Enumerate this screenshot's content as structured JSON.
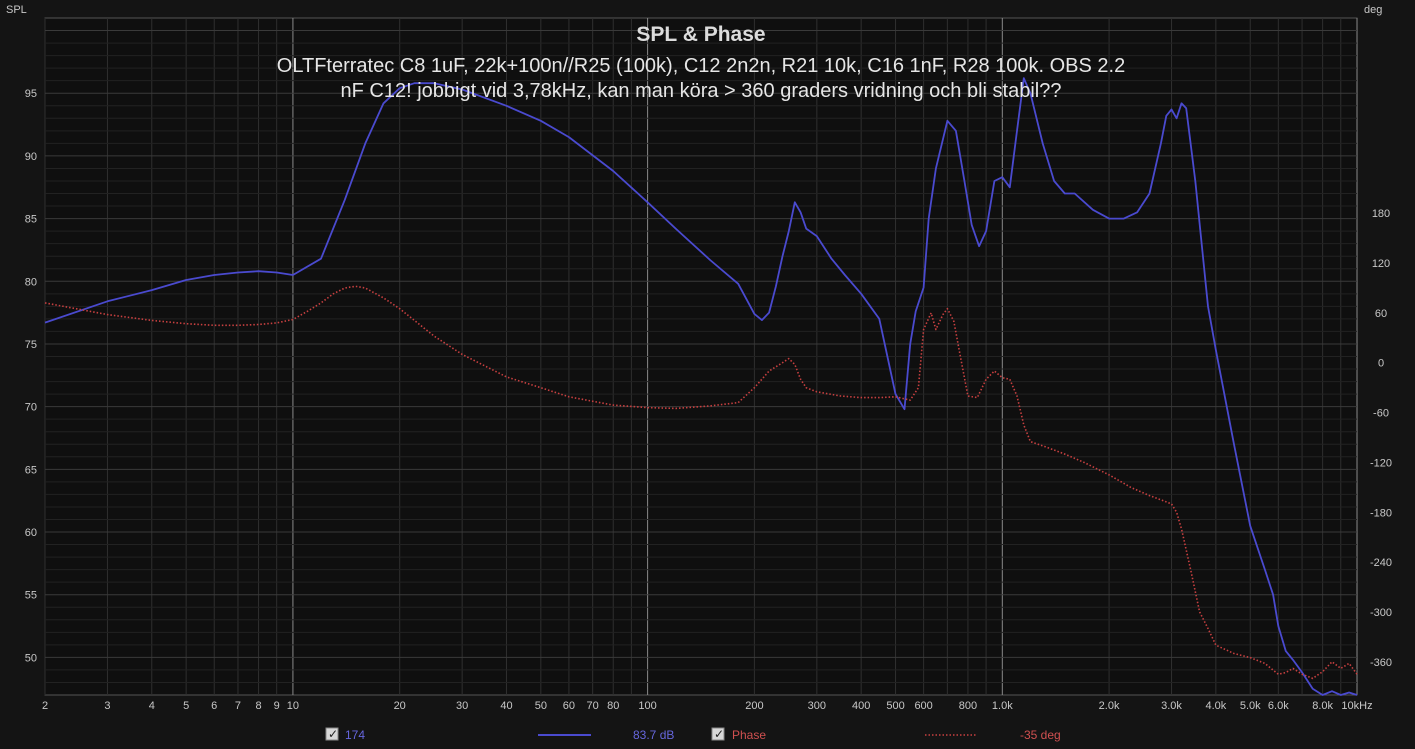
{
  "chart_data": {
    "type": "line",
    "title": "SPL & Phase",
    "annotation_lines": [
      "OLTFterratec C8 1uF, 22k+100n//R25 (100k), C12 2n2n,  R21 10k, C16 1nF, R28 100k. OBS 2.2",
      "nF C12! jobbigt vid 3,78kHz, kan man köra > 360 graders vridning och bli stabil??"
    ],
    "xscale": "log",
    "xlim": [
      2,
      10000
    ],
    "ylim": [
      47,
      101
    ],
    "y2lim": [
      -400,
      415
    ],
    "ylabel": "SPL",
    "y2label": "deg",
    "grid": true,
    "x_ticks": [
      {
        "v": 2,
        "label": "2"
      },
      {
        "v": 3,
        "label": "3"
      },
      {
        "v": 4,
        "label": "4"
      },
      {
        "v": 5,
        "label": "5"
      },
      {
        "v": 6,
        "label": "6"
      },
      {
        "v": 7,
        "label": "7"
      },
      {
        "v": 8,
        "label": "8"
      },
      {
        "v": 9,
        "label": "9"
      },
      {
        "v": 10,
        "label": "10"
      },
      {
        "v": 20,
        "label": "20"
      },
      {
        "v": 30,
        "label": "30"
      },
      {
        "v": 40,
        "label": "40"
      },
      {
        "v": 50,
        "label": "50"
      },
      {
        "v": 60,
        "label": "60"
      },
      {
        "v": 70,
        "label": "70"
      },
      {
        "v": 80,
        "label": "80"
      },
      {
        "v": 100,
        "label": "100"
      },
      {
        "v": 200,
        "label": "200"
      },
      {
        "v": 300,
        "label": "300"
      },
      {
        "v": 400,
        "label": "400"
      },
      {
        "v": 500,
        "label": "500"
      },
      {
        "v": 600,
        "label": "600"
      },
      {
        "v": 800,
        "label": "800"
      },
      {
        "v": 1000,
        "label": "1.0k"
      },
      {
        "v": 2000,
        "label": "2.0k"
      },
      {
        "v": 3000,
        "label": "3.0k"
      },
      {
        "v": 4000,
        "label": "4.0k"
      },
      {
        "v": 5000,
        "label": "5.0k"
      },
      {
        "v": 6000,
        "label": "6.0k"
      },
      {
        "v": 8000,
        "label": "8.0k"
      },
      {
        "v": 10000,
        "label": "10kHz"
      }
    ],
    "y_ticks": [
      50,
      55,
      60,
      65,
      70,
      75,
      80,
      85,
      90,
      95
    ],
    "y2_ticks": [
      -360,
      -300,
      -240,
      -180,
      -120,
      -60,
      0,
      60,
      120,
      180
    ],
    "series": [
      {
        "name": "174",
        "axis": "left",
        "color": "#4a4acf",
        "style": "solid",
        "legend_value": "83.7 dB",
        "x": [
          2,
          3,
          4,
          5,
          6,
          7,
          8,
          9,
          10,
          12,
          14,
          16,
          18,
          20,
          22,
          25,
          30,
          40,
          50,
          60,
          80,
          100,
          120,
          150,
          180,
          200,
          210,
          220,
          230,
          240,
          250,
          260,
          270,
          280,
          300,
          330,
          360,
          400,
          450,
          500,
          530,
          550,
          570,
          600,
          620,
          650,
          700,
          740,
          780,
          820,
          860,
          900,
          950,
          1000,
          1050,
          1100,
          1150,
          1200,
          1300,
          1400,
          1500,
          1600,
          1800,
          2000,
          2200,
          2400,
          2600,
          2800,
          2900,
          3000,
          3100,
          3200,
          3300,
          3500,
          3800,
          4000,
          4500,
          5000,
          5500,
          5800,
          6000,
          6300,
          6600,
          7000,
          7500,
          8000,
          8500,
          9000,
          9500,
          10000
        ],
        "y": [
          76.7,
          78.4,
          79.3,
          80.1,
          80.5,
          80.7,
          80.8,
          80.7,
          80.5,
          81.8,
          86.5,
          91.0,
          94.2,
          95.4,
          95.8,
          95.8,
          95.3,
          94.0,
          92.8,
          91.5,
          88.8,
          86.3,
          84.2,
          81.7,
          79.8,
          77.4,
          76.9,
          77.5,
          79.6,
          82.0,
          84.0,
          86.3,
          85.5,
          84.2,
          83.6,
          81.8,
          80.5,
          79.0,
          77.0,
          71.0,
          69.8,
          75.0,
          77.6,
          79.5,
          85.0,
          89.0,
          92.8,
          92.0,
          88.2,
          84.5,
          82.8,
          84.0,
          88.0,
          88.3,
          87.5,
          92.0,
          96.2,
          95.0,
          91.0,
          88.0,
          87.0,
          87.0,
          85.7,
          85.0,
          85.0,
          85.5,
          87.0,
          91.0,
          93.2,
          93.7,
          93.0,
          94.2,
          93.8,
          88.0,
          78.0,
          74.5,
          67.0,
          60.5,
          57.0,
          55.0,
          52.5,
          50.5,
          49.8,
          48.8,
          47.5,
          47.0,
          47.3,
          47.0,
          47.2,
          47.0
        ]
      },
      {
        "name": "Phase",
        "axis": "right",
        "color": "#c84040",
        "style": "dotted",
        "legend_value": "-35 deg",
        "x": [
          2,
          3,
          4,
          5,
          6,
          7,
          8,
          9,
          10,
          11,
          12,
          13,
          14,
          15,
          16,
          18,
          20,
          25,
          30,
          40,
          50,
          60,
          80,
          100,
          120,
          150,
          180,
          200,
          220,
          240,
          250,
          260,
          270,
          280,
          300,
          350,
          400,
          450,
          500,
          550,
          580,
          600,
          630,
          650,
          680,
          700,
          730,
          760,
          800,
          850,
          900,
          950,
          1000,
          1050,
          1100,
          1150,
          1200,
          1300,
          1400,
          1500,
          1700,
          2000,
          2300,
          2600,
          2800,
          3000,
          3100,
          3200,
          3400,
          3600,
          3800,
          4000,
          4500,
          5000,
          5500,
          5800,
          6000,
          6300,
          6600,
          7000,
          7500,
          8000,
          8500,
          9000,
          9500,
          10000
        ],
        "y": [
          72,
          58,
          51,
          47,
          45,
          45,
          46,
          48,
          52,
          62,
          72,
          83,
          90,
          92,
          90,
          78,
          65,
          32,
          10,
          -17,
          -30,
          -41,
          -51,
          -54,
          -55,
          -52,
          -48,
          -30,
          -10,
          0,
          5,
          -2,
          -20,
          -30,
          -35,
          -40,
          -42,
          -42,
          -41,
          -45,
          -30,
          40,
          60,
          40,
          58,
          65,
          50,
          10,
          -40,
          -42,
          -20,
          -10,
          -18,
          -20,
          -40,
          -75,
          -95,
          -100,
          -105,
          -110,
          -120,
          -135,
          -150,
          -160,
          -165,
          -170,
          -180,
          -200,
          -250,
          -300,
          -320,
          -340,
          -350,
          -355,
          -362,
          -370,
          -375,
          -373,
          -368,
          -375,
          -380,
          -372,
          -360,
          -368,
          -362,
          -375
        ]
      }
    ],
    "legend": [
      {
        "label": "174",
        "value": "83.7 dB",
        "color": "#4a4acf",
        "checked": true
      },
      {
        "label": "Phase",
        "value": "-35 deg",
        "color": "#c84040",
        "checked": true
      }
    ]
  }
}
